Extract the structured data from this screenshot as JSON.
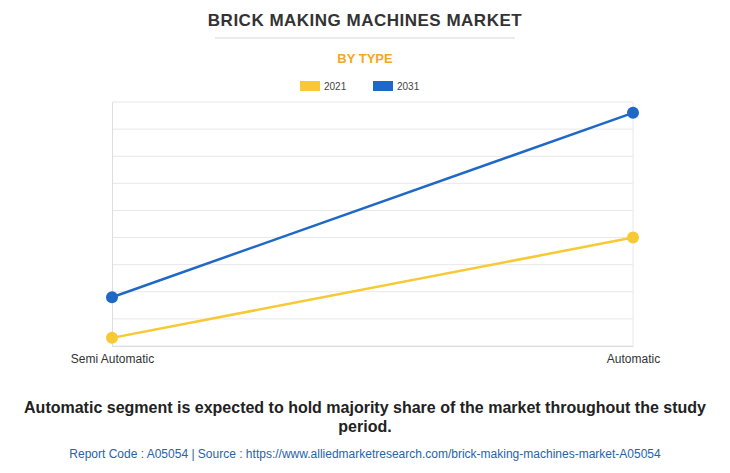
{
  "chart_data": {
    "type": "line",
    "title": "BRICK MAKING MACHINES MARKET",
    "subtitle": "BY TYPE",
    "annotations": [
      "Automatic segment is expected to hold majority share of the market throughout the study period."
    ],
    "source": "Report Code : A05054  |  Source : https://www.alliedmarketresearch.com/brick-making-machines-market-A05054",
    "categories": [
      "Semi Automatic",
      "Automatic"
    ],
    "series": [
      {
        "name": "2021",
        "color": "#f6c935",
        "values": [
          0.3,
          4.0
        ],
        "marker": "circle"
      },
      {
        "name": "2031",
        "color": "#1f68c6",
        "values": [
          1.8,
          8.6
        ],
        "marker": "circle"
      }
    ],
    "ylim": [
      0,
      9
    ],
    "yticks": [
      0,
      1,
      2,
      3,
      4,
      5,
      6,
      7,
      8,
      9
    ],
    "grid": true,
    "legend": "top",
    "tick_labels": "x"
  }
}
